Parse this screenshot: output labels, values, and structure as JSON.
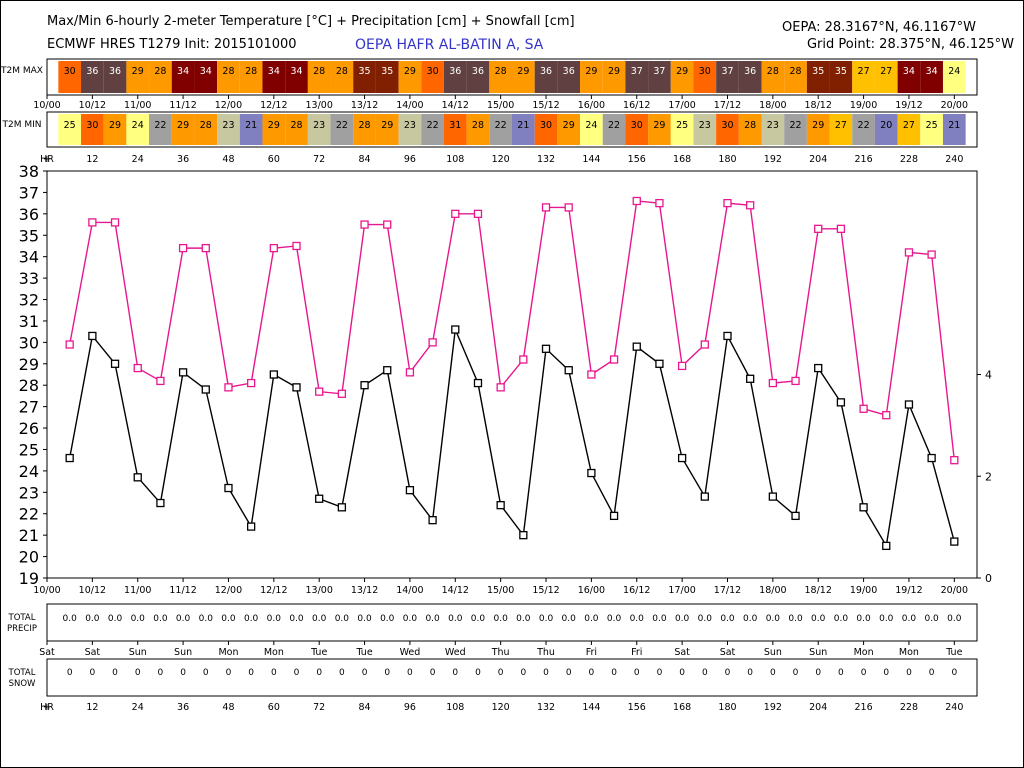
{
  "header": {
    "title": "Max/Min 6-hourly 2-meter Temperature [°C] + Precipitation [cm] + Snowfall [cm]",
    "model": "ECMWF HRES T1279 Init: 2015101000",
    "station": "OEPA HAFR AL-BATIN A, SA",
    "location": "OEPA: 28.3167°N, 46.1167°W",
    "grid_point": "Grid Point: 28.375°N, 46.125°W"
  },
  "rows": {
    "t2m_max_label": "T2M MAX",
    "t2m_min_label": "T2M MIN",
    "hr_label": "HR",
    "hr_plus": "+",
    "precip_label_1": "TOTAL",
    "precip_label_2": "PRECIP",
    "snow_label_1": "TOTAL",
    "snow_label_2": "SNOW"
  },
  "date_ticks": [
    "10/00",
    "10/12",
    "11/00",
    "11/12",
    "12/00",
    "12/12",
    "13/00",
    "13/12",
    "14/00",
    "14/12",
    "15/00",
    "15/12",
    "16/00",
    "16/12",
    "17/00",
    "17/12",
    "18/00",
    "18/12",
    "19/00",
    "19/12",
    "20/00"
  ],
  "hour_ticks": [
    "12",
    "24",
    "36",
    "48",
    "60",
    "72",
    "84",
    "96",
    "108",
    "120",
    "132",
    "144",
    "156",
    "168",
    "180",
    "192",
    "204",
    "216",
    "228",
    "240"
  ],
  "weekdays": [
    "Sat",
    "Sat",
    "Sun",
    "Sun",
    "Mon",
    "Mon",
    "Tue",
    "Tue",
    "Wed",
    "Wed",
    "Thu",
    "Thu",
    "Fri",
    "Fri",
    "Sat",
    "Sat",
    "Sun",
    "Sun",
    "Mon",
    "Mon",
    "Tue"
  ],
  "t2m_max_values": [
    30,
    36,
    36,
    29,
    28,
    34,
    34,
    28,
    28,
    34,
    34,
    28,
    28,
    35,
    35,
    29,
    30,
    36,
    36,
    28,
    29,
    36,
    36,
    29,
    29,
    37,
    37,
    29,
    30,
    37,
    36,
    28,
    28,
    35,
    35,
    27,
    27,
    34,
    34,
    24
  ],
  "t2m_min_values": [
    25,
    30,
    29,
    24,
    22,
    29,
    28,
    23,
    21,
    29,
    28,
    23,
    22,
    28,
    29,
    23,
    22,
    31,
    28,
    22,
    21,
    30,
    29,
    24,
    22,
    30,
    29,
    25,
    23,
    30,
    28,
    23,
    22,
    29,
    27,
    22,
    20,
    27,
    25,
    21
  ],
  "precip_values": [
    "0.0",
    "0.0",
    "0.0",
    "0.0",
    "0.0",
    "0.0",
    "0.0",
    "0.0",
    "0.0",
    "0.0",
    "0.0",
    "0.0",
    "0.0",
    "0.0",
    "0.0",
    "0.0",
    "0.0",
    "0.0",
    "0.0",
    "0.0",
    "0.0",
    "0.0",
    "0.0",
    "0.0",
    "0.0",
    "0.0",
    "0.0",
    "0.0",
    "0.0",
    "0.0",
    "0.0",
    "0.0",
    "0.0",
    "0.0",
    "0.0",
    "0.0",
    "0.0",
    "0.0",
    "0.0",
    "0.0"
  ],
  "snow_values": [
    "0",
    "0",
    "0",
    "0",
    "0",
    "0",
    "0",
    "0",
    "0",
    "0",
    "0",
    "0",
    "0",
    "0",
    "0",
    "0",
    "0",
    "0",
    "0",
    "0",
    "0",
    "0",
    "0",
    "0",
    "0",
    "0",
    "0",
    "0",
    "0",
    "0",
    "0",
    "0",
    "0",
    "0",
    "0",
    "0",
    "0",
    "0",
    "0",
    "0"
  ],
  "colors": {
    "max_line": "#e8178f",
    "min_line": "#000000",
    "temp_scale": {
      "20": "#8080c0",
      "21": "#8080c0",
      "22": "#a0a0a0",
      "23": "#c8c8a0",
      "24": "#ffff80",
      "25": "#ffff80",
      "26": "#ffff00",
      "27": "#ffc000",
      "28": "#ff9900",
      "29": "#ff9900",
      "30": "#ff6600",
      "31": "#ff6600",
      "32": "#ff3300",
      "33": "#cc3300",
      "34": "#800000",
      "35": "#802000",
      "36": "#604040",
      "37": "#604040"
    }
  },
  "chart_data": {
    "type": "line",
    "x_hours": [
      6,
      12,
      18,
      24,
      30,
      36,
      42,
      48,
      54,
      60,
      66,
      72,
      78,
      84,
      90,
      96,
      102,
      108,
      114,
      120,
      126,
      132,
      138,
      144,
      150,
      156,
      162,
      168,
      174,
      180,
      186,
      192,
      198,
      204,
      210,
      216,
      222,
      228,
      234,
      240
    ],
    "series": [
      {
        "name": "T2M MAX",
        "values": [
          29.9,
          35.6,
          35.6,
          28.8,
          28.2,
          34.4,
          34.4,
          27.9,
          28.1,
          34.4,
          34.5,
          27.7,
          27.6,
          35.5,
          35.5,
          28.6,
          30.0,
          36.0,
          36.0,
          27.9,
          29.2,
          36.3,
          36.3,
          28.5,
          29.2,
          36.6,
          36.5,
          28.9,
          29.9,
          36.5,
          36.4,
          28.1,
          28.2,
          35.3,
          35.3,
          26.9,
          26.6,
          34.2,
          34.1,
          24.5
        ]
      },
      {
        "name": "T2M MIN",
        "values": [
          24.6,
          30.3,
          29.0,
          23.7,
          22.5,
          28.6,
          27.8,
          23.2,
          21.4,
          28.5,
          27.9,
          22.7,
          22.3,
          28.0,
          28.7,
          23.1,
          21.7,
          30.6,
          28.1,
          22.4,
          21.0,
          29.7,
          28.7,
          23.9,
          21.9,
          29.8,
          29.0,
          24.6,
          22.8,
          30.3,
          28.3,
          22.8,
          21.9,
          28.8,
          27.2,
          22.3,
          20.5,
          27.1,
          24.6,
          20.7
        ]
      }
    ],
    "ylim": [
      19,
      38
    ],
    "yticks": [
      19,
      20,
      21,
      22,
      23,
      24,
      25,
      26,
      27,
      28,
      29,
      30,
      31,
      32,
      33,
      34,
      35,
      36,
      37,
      38
    ],
    "y2ticks": [
      0,
      2,
      4
    ],
    "y2lim": [
      0,
      8
    ]
  }
}
